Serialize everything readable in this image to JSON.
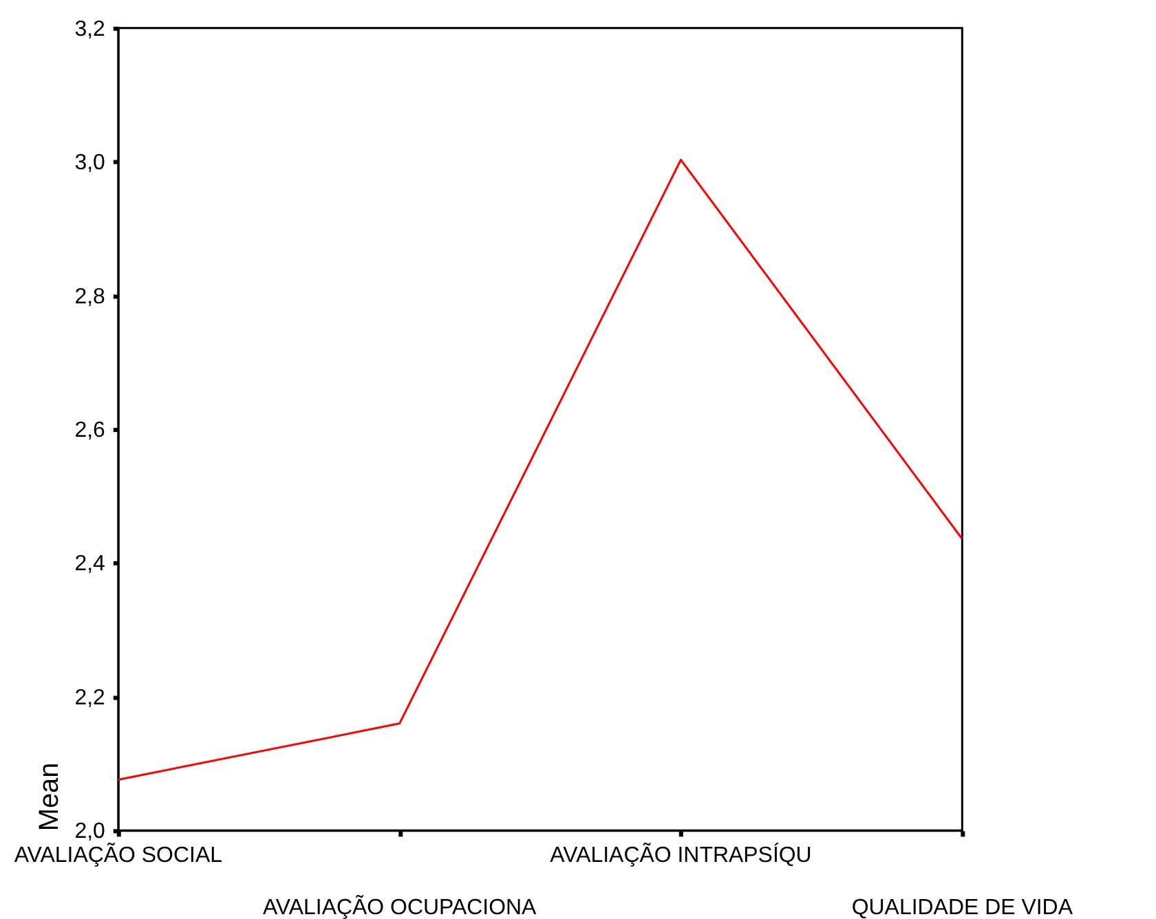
{
  "chart_data": {
    "type": "line",
    "ylabel": "Mean",
    "categories": [
      "AVALIAÇÃO SOCIAL",
      "AVALIAÇÃO OCUPACIONA",
      "AVALIAÇÃO INTRAPSÍQU",
      "QUALIDADE DE VIDA"
    ],
    "series": [
      {
        "color": "#ff0000",
        "values": [
          2.076,
          2.16,
          3.003,
          2.436
        ]
      }
    ],
    "ylim": [
      2.0,
      3.2
    ],
    "yticks": [
      {
        "value": 2.0,
        "label": "2,0"
      },
      {
        "value": 2.2,
        "label": "2,2"
      },
      {
        "value": 2.4,
        "label": "2,4"
      },
      {
        "value": 2.6,
        "label": "2,6"
      },
      {
        "value": 2.8,
        "label": "2,8"
      },
      {
        "value": 3.0,
        "label": "3,0"
      },
      {
        "value": 3.2,
        "label": "3,2"
      }
    ],
    "grid": false,
    "marker": "none",
    "line_style": "solid"
  }
}
